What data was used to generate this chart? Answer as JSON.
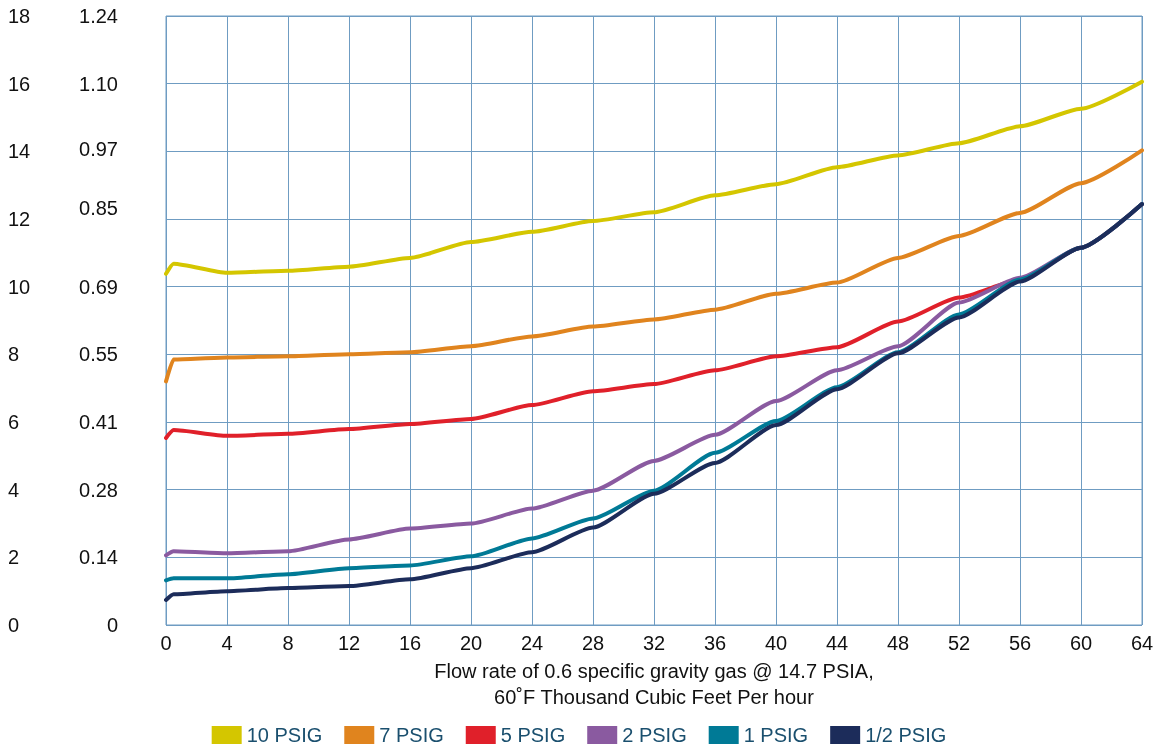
{
  "chart_data": {
    "type": "line",
    "xlabel": "Flow rate of 0.6 specific gravity gas @ 14.7 PSIA,\n60˚F Thousand Cubic Feet Per hour",
    "x": [
      0,
      0.5,
      4,
      8,
      12,
      16,
      20,
      24,
      28,
      32,
      36,
      40,
      44,
      48,
      52,
      56,
      60,
      64
    ],
    "series": [
      {
        "name": "10 PSIG",
        "color": "#d4c600",
        "values": [
          10.38,
          10.68,
          10.41,
          10.47,
          10.59,
          10.85,
          11.32,
          11.62,
          11.94,
          12.2,
          12.7,
          13.03,
          13.53,
          13.88,
          14.24,
          14.74,
          15.26,
          16.06
        ]
      },
      {
        "name": "7 PSIG",
        "color": "#e0841e",
        "values": [
          7.2,
          7.85,
          7.91,
          7.94,
          8.0,
          8.06,
          8.24,
          8.53,
          8.82,
          9.03,
          9.32,
          9.79,
          10.12,
          10.85,
          11.5,
          12.18,
          13.06,
          14.03
        ]
      },
      {
        "name": "5 PSIG",
        "color": "#e0202a",
        "values": [
          5.53,
          5.76,
          5.59,
          5.65,
          5.79,
          5.94,
          6.09,
          6.5,
          6.91,
          7.12,
          7.53,
          7.94,
          8.21,
          8.97,
          9.68,
          10.21,
          11.15,
          12.44
        ]
      },
      {
        "name": "2 PSIG",
        "color": "#8a5aa0",
        "values": [
          2.06,
          2.18,
          2.12,
          2.18,
          2.53,
          2.85,
          3.0,
          3.44,
          3.97,
          4.85,
          5.62,
          6.62,
          7.53,
          8.24,
          9.53,
          10.26,
          11.15,
          12.44
        ]
      },
      {
        "name": "1 PSIG",
        "color": "#007a96",
        "values": [
          1.32,
          1.38,
          1.38,
          1.5,
          1.68,
          1.76,
          2.03,
          2.56,
          3.15,
          3.97,
          5.09,
          6.03,
          7.03,
          8.06,
          9.18,
          10.21,
          11.15,
          12.44
        ]
      },
      {
        "name": "1/2 PSIG",
        "color": "#1c2c5a",
        "values": [
          0.74,
          0.91,
          1.0,
          1.09,
          1.15,
          1.35,
          1.68,
          2.15,
          2.88,
          3.88,
          4.79,
          5.91,
          6.97,
          8.03,
          9.09,
          10.15,
          11.15,
          12.44
        ]
      }
    ],
    "xlim": [
      0,
      64
    ],
    "xticks": [
      0,
      4,
      8,
      12,
      16,
      20,
      24,
      28,
      32,
      36,
      40,
      44,
      48,
      52,
      56,
      60,
      64
    ],
    "ylim": [
      0,
      18
    ],
    "yticks": [
      0,
      2,
      4,
      6,
      8,
      10,
      12,
      14,
      16,
      18
    ],
    "y2lim": [
      0,
      1.24
    ],
    "y2ticks": [
      0,
      {
        "value": 0.1378,
        "label": "0.14"
      },
      {
        "value": 0.2756,
        "label": "0.28"
      },
      {
        "value": 0.4133,
        "label": "0.41"
      },
      {
        "value": 0.5511,
        "label": "0.55"
      },
      {
        "value": 0.6889,
        "label": "0.69"
      },
      0.85,
      0.97,
      {
        "value": 1.1022,
        "label": "1.10"
      },
      1.24
    ],
    "grid": true,
    "legend": "bottom",
    "marker": "none",
    "line_style": "solid"
  }
}
